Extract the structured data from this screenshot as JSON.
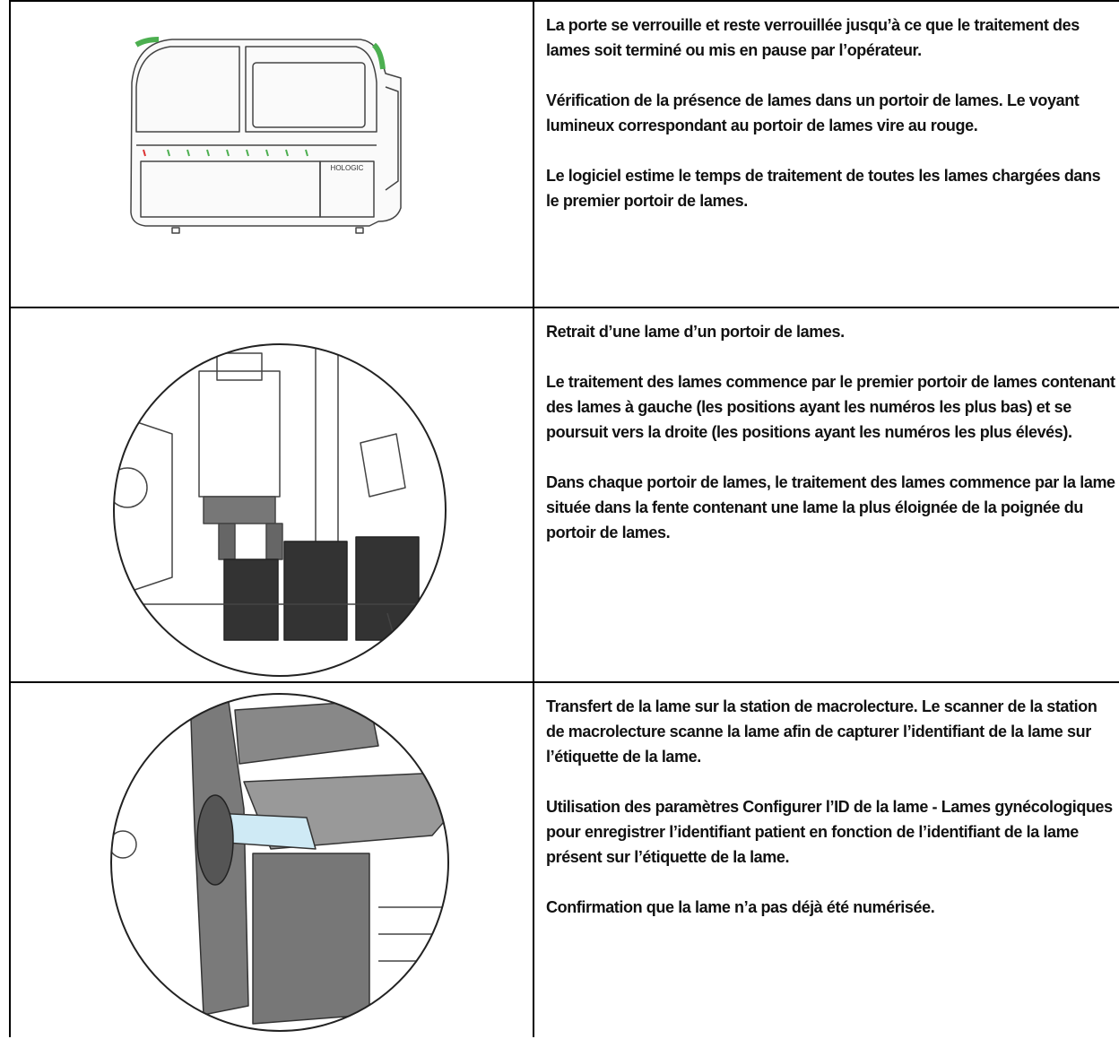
{
  "table": {
    "rows": [
      {
        "paragraphs": [
          "La porte se verrouille et reste verrouillée jusqu’à ce que le traitement des lames soit terminé ou mis en pause par l’opérateur.",
          "Vérification de la présence de lames dans un portoir de lames. Le voyant lumineux correspondant au portoir de lames vire au rouge.",
          "Le logiciel estime le temps de traitement de toutes les lames chargées dans le premier portoir de lames."
        ]
      },
      {
        "paragraphs": [
          "Retrait d’une lame d’un portoir de lames.",
          "Le traitement des lames commence par le premier portoir de lames contenant des lames à gauche (les positions ayant les numéros les plus bas) et se poursuit vers la droite (les positions ayant les numéros les plus élevés).",
          "Dans chaque portoir de lames, le traitement des lames commence par la lame située dans la fente contenant une lame la plus éloignée de la poignée du portoir de lames."
        ]
      },
      {
        "paragraphs": [
          "Transfert de la lame sur la station de macrolecture. Le scanner de la station de macrolecture scanne la lame afin de capturer l’identifiant de la lame sur l’étiquette de la lame.",
          "Utilisation des paramètres Configurer l’ID de la lame - Lames gynécologiques pour enregistrer l’identifiant patient en fonction de l’identifiant de la lame présent sur l’étiquette de la lame.",
          "Confirmation que la lame n’a pas déjà été numérisée."
        ]
      }
    ],
    "logo": "HOLOGIC"
  }
}
